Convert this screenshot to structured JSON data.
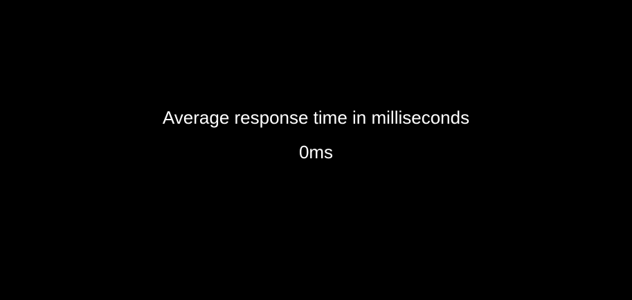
{
  "metric": {
    "label": "Average response time in milliseconds",
    "value": "0ms"
  },
  "colors": {
    "background": "#000000",
    "text": "#ffffff"
  }
}
